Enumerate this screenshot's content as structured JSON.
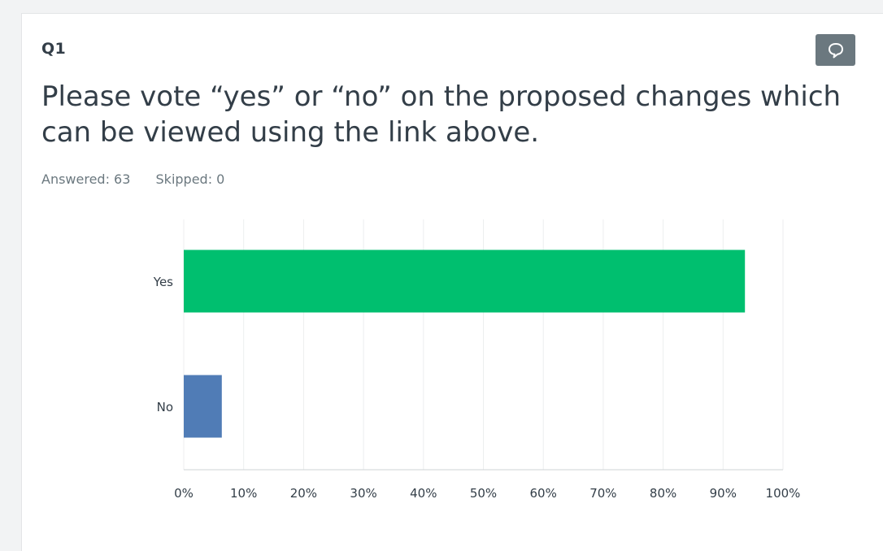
{
  "question": {
    "number": "Q1",
    "text": "Please vote “yes” or “no” on the proposed changes which can be viewed using the link above.",
    "answered": "Answered: 63",
    "skipped": "Skipped: 0",
    "comment_icon": "speech-bubble-icon"
  },
  "colors": {
    "yes": "#00bf6f",
    "no": "#507cb6",
    "comment_button": "#6b787f"
  },
  "chart_data": {
    "type": "bar",
    "orientation": "horizontal",
    "categories": [
      "Yes",
      "No"
    ],
    "values": [
      93.65,
      6.35
    ],
    "unit": "%",
    "xlim": [
      0,
      100
    ],
    "xticks": [
      "0%",
      "10%",
      "20%",
      "30%",
      "40%",
      "50%",
      "60%",
      "70%",
      "80%",
      "90%",
      "100%"
    ],
    "grid": true,
    "legend": "none"
  }
}
